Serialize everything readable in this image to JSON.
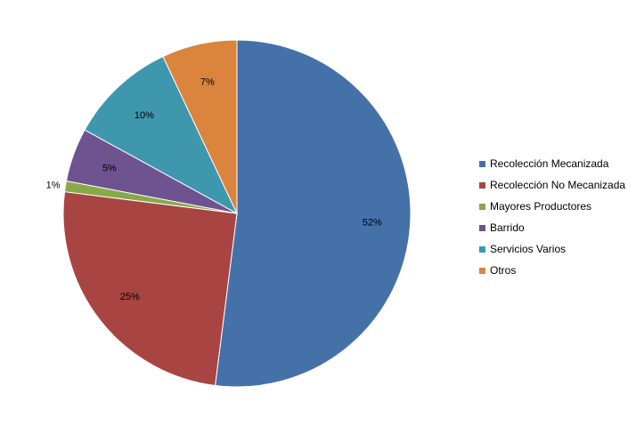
{
  "chart_data": {
    "type": "pie",
    "title": "",
    "slices": [
      {
        "name": "Recolección Mecanizada",
        "value": 52,
        "label": "52%",
        "color": "#4571A9"
      },
      {
        "name": "Recolección No Mecanizada",
        "value": 25,
        "label": "25%",
        "color": "#A84442"
      },
      {
        "name": "Mayores Productores",
        "value": 1,
        "label": "1%",
        "color": "#87A94A"
      },
      {
        "name": "Barrido",
        "value": 5,
        "label": "5%",
        "color": "#6F5390"
      },
      {
        "name": "Servicios Varios",
        "value": 10,
        "label": "10%",
        "color": "#3F97AE"
      },
      {
        "name": "Otros",
        "value": 7,
        "label": "7%",
        "color": "#DB843D"
      }
    ],
    "start_angle": "12 o'clock",
    "direction": "clockwise",
    "legend_position": "right",
    "data_labels": "inside"
  }
}
